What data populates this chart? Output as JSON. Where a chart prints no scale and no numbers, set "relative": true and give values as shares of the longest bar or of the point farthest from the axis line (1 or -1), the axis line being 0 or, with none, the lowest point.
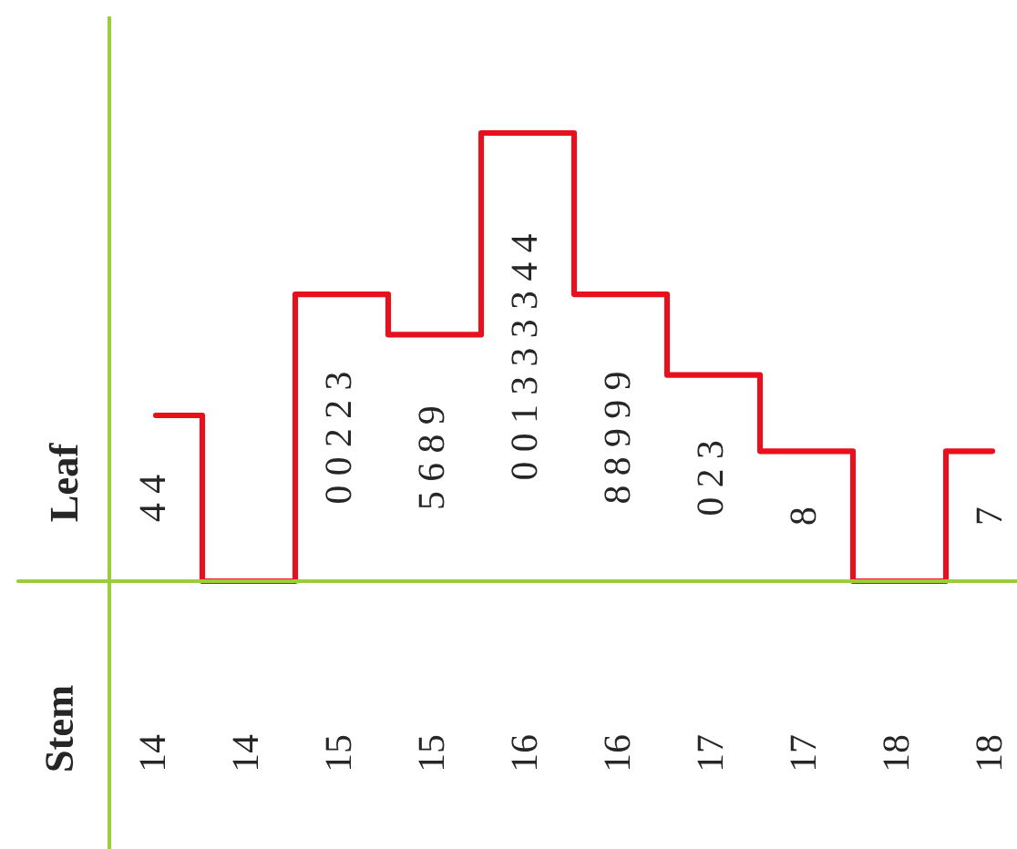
{
  "chart_data": {
    "type": "step",
    "relative": true,
    "ylabel": "Leaf",
    "color": "#e8101c",
    "categories": [
      "14",
      "14",
      "15",
      "15",
      "16",
      "16",
      "17",
      "17",
      "18",
      "18"
    ],
    "values": [
      0.37,
      0,
      0.64,
      0.55,
      1,
      0.64,
      0.46,
      0.29,
      0,
      0.29
    ],
    "annotations": [
      "Stem",
      "4 4",
      "0 0 2 2 3",
      "5 6 8 9",
      "0 0 1 3 3 3 3 4 4",
      "8 8 9 9 9",
      "0 2 3",
      "8",
      "7"
    ]
  }
}
